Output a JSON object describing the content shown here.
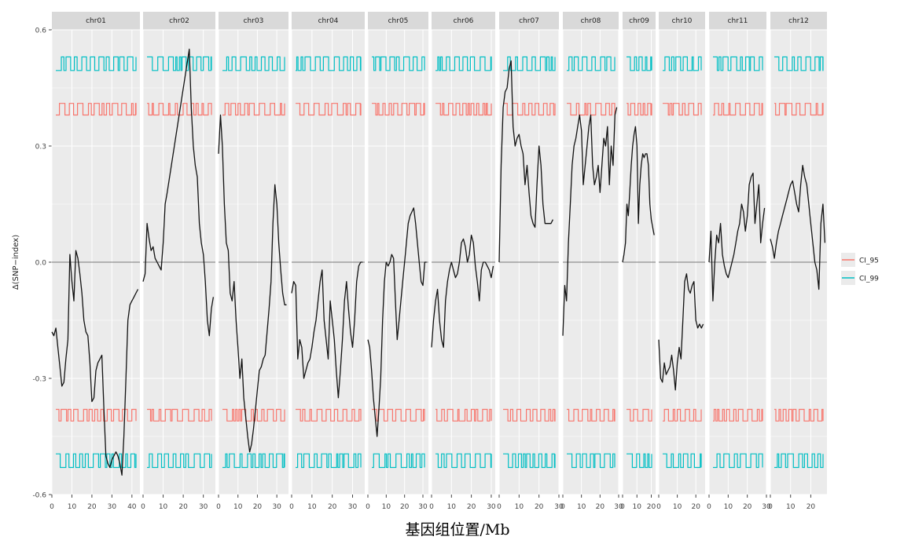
{
  "chart_data": {
    "type": "line",
    "xlabel": "基因组位置/Mb",
    "ylabel": "Δ(SNP−index)",
    "ylim": [
      -0.6,
      0.6
    ],
    "yticks": [
      {
        "value": 0.6,
        "label": "0.6"
      },
      {
        "value": 0.3,
        "label": "0.3"
      },
      {
        "value": 0.0,
        "label": "0.0"
      },
      {
        "value": -0.3,
        "label": "-0.3"
      },
      {
        "value": -0.6,
        "label": "-0.6"
      }
    ],
    "zero_line": 0,
    "grid": true,
    "legend": {
      "position": "right",
      "entries": [
        {
          "name": "CI_95",
          "color": "#F8766D"
        },
        {
          "name": "CI_99",
          "color": "#00BFC4"
        }
      ]
    },
    "panels": [
      {
        "label": "chr01",
        "xlim": [
          0,
          44
        ],
        "xticks": [
          0,
          10,
          20,
          30,
          40
        ],
        "snp_delta": {
          "x": [
            0,
            1,
            2,
            3,
            4,
            5,
            6,
            7,
            8,
            9,
            10,
            11,
            12,
            13,
            14,
            15,
            16,
            17,
            18,
            19,
            20,
            21,
            22,
            23,
            24,
            25,
            26,
            27,
            28,
            29,
            30,
            31,
            32,
            33,
            34,
            35,
            36,
            37,
            38,
            39,
            40,
            41,
            42,
            43
          ],
          "y": [
            -0.18,
            -0.19,
            -0.17,
            -0.22,
            -0.27,
            -0.32,
            -0.31,
            -0.25,
            -0.2,
            0.02,
            -0.05,
            -0.1,
            0.03,
            0.01,
            -0.03,
            -0.08,
            -0.15,
            -0.18,
            -0.19,
            -0.26,
            -0.36,
            -0.35,
            -0.28,
            -0.26,
            -0.25,
            -0.24,
            -0.38,
            -0.5,
            -0.52,
            -0.53,
            -0.51,
            -0.5,
            -0.49,
            -0.5,
            -0.52,
            -0.55,
            -0.45,
            -0.3,
            -0.15,
            -0.11,
            -0.1,
            -0.09,
            -0.08,
            -0.07
          ]
        }
      },
      {
        "label": "chr02",
        "xlim": [
          0,
          36
        ],
        "xticks": [
          0,
          10,
          20,
          30
        ],
        "snp_delta": {
          "x": [
            0,
            1,
            2,
            3,
            4,
            5,
            6,
            7,
            8,
            9,
            10,
            11,
            12,
            23,
            24,
            25,
            26,
            27,
            28,
            29,
            30,
            31,
            32,
            33,
            34,
            35
          ],
          "y": [
            -0.05,
            -0.03,
            0.1,
            0.06,
            0.03,
            0.04,
            0.01,
            0.0,
            -0.01,
            -0.02,
            0.05,
            0.15,
            0.18,
            0.55,
            0.4,
            0.3,
            0.25,
            0.22,
            0.1,
            0.05,
            0.02,
            -0.05,
            -0.15,
            -0.19,
            -0.12,
            -0.09
          ]
        }
      },
      {
        "label": "chr03",
        "xlim": [
          0,
          36
        ],
        "xticks": [
          0,
          10,
          20,
          30
        ],
        "snp_delta": {
          "x": [
            0,
            1,
            2,
            3,
            4,
            5,
            6,
            7,
            8,
            9,
            10,
            11,
            12,
            13,
            14,
            15,
            16,
            17,
            18,
            19,
            20,
            21,
            22,
            23,
            24,
            25,
            26,
            27,
            28,
            29,
            30,
            31,
            32,
            33,
            34,
            35
          ],
          "y": [
            0.28,
            0.38,
            0.3,
            0.15,
            0.05,
            0.03,
            -0.08,
            -0.1,
            -0.05,
            -0.15,
            -0.22,
            -0.3,
            -0.25,
            -0.35,
            -0.4,
            -0.45,
            -0.49,
            -0.47,
            -0.43,
            -0.38,
            -0.33,
            -0.28,
            -0.27,
            -0.25,
            -0.24,
            -0.18,
            -0.12,
            -0.05,
            0.1,
            0.2,
            0.15,
            0.05,
            -0.02,
            -0.08,
            -0.11,
            -0.11
          ]
        }
      },
      {
        "label": "chr04",
        "xlim": [
          0,
          36
        ],
        "xticks": [
          0,
          10,
          20,
          30
        ],
        "snp_delta": {
          "x": [
            0,
            1,
            2,
            3,
            4,
            5,
            6,
            7,
            8,
            9,
            10,
            11,
            12,
            13,
            14,
            15,
            16,
            17,
            18,
            19,
            20,
            21,
            22,
            23,
            24,
            25,
            26,
            27,
            28,
            29,
            30,
            31,
            32,
            33,
            34,
            35
          ],
          "y": [
            -0.08,
            -0.05,
            -0.06,
            -0.25,
            -0.2,
            -0.22,
            -0.3,
            -0.28,
            -0.26,
            -0.25,
            -0.22,
            -0.18,
            -0.15,
            -0.1,
            -0.05,
            -0.02,
            -0.15,
            -0.2,
            -0.25,
            -0.1,
            -0.15,
            -0.2,
            -0.28,
            -0.35,
            -0.28,
            -0.2,
            -0.1,
            -0.05,
            -0.12,
            -0.18,
            -0.22,
            -0.15,
            -0.05,
            -0.01,
            0.0,
            0.0
          ]
        }
      },
      {
        "label": "chr05",
        "xlim": [
          0,
          33
        ],
        "xticks": [
          0,
          10,
          20,
          30
        ],
        "snp_delta": {
          "x": [
            0,
            1,
            2,
            3,
            4,
            5,
            6,
            7,
            8,
            9,
            10,
            11,
            12,
            13,
            14,
            15,
            16,
            17,
            18,
            19,
            20,
            21,
            22,
            23,
            24,
            25,
            26,
            27,
            28,
            29,
            30,
            31,
            32
          ],
          "y": [
            -0.2,
            -0.22,
            -0.28,
            -0.35,
            -0.4,
            -0.45,
            -0.38,
            -0.3,
            -0.15,
            -0.05,
            0.0,
            -0.01,
            0.0,
            0.02,
            0.01,
            -0.1,
            -0.2,
            -0.15,
            -0.1,
            -0.05,
            0.0,
            0.05,
            0.1,
            0.12,
            0.13,
            0.14,
            0.1,
            0.05,
            0.0,
            -0.05,
            -0.06,
            0.0,
            0.0
          ]
        }
      },
      {
        "label": "chr06",
        "xlim": [
          0,
          32
        ],
        "xticks": [
          0,
          10,
          20,
          30
        ],
        "snp_delta": {
          "x": [
            0,
            1,
            2,
            3,
            4,
            5,
            6,
            7,
            8,
            9,
            10,
            11,
            12,
            13,
            14,
            15,
            16,
            17,
            18,
            19,
            20,
            21,
            22,
            23,
            24,
            25,
            26,
            27,
            28,
            29,
            30,
            31
          ],
          "y": [
            -0.22,
            -0.15,
            -0.1,
            -0.07,
            -0.15,
            -0.2,
            -0.22,
            -0.1,
            -0.05,
            -0.02,
            0.0,
            -0.02,
            -0.04,
            -0.03,
            0.0,
            0.05,
            0.06,
            0.04,
            0.0,
            0.02,
            0.07,
            0.05,
            -0.01,
            -0.05,
            -0.1,
            -0.02,
            0.0,
            0.0,
            -0.01,
            -0.02,
            -0.04,
            -0.01
          ]
        }
      },
      {
        "label": "chr07",
        "xlim": [
          0,
          30
        ],
        "xticks": [
          0,
          10,
          20,
          30
        ],
        "snp_delta": {
          "x": [
            0,
            1,
            2,
            3,
            4,
            5,
            6,
            7,
            8,
            9,
            10,
            11,
            12,
            13,
            14,
            15,
            16,
            17,
            18,
            19,
            20,
            21,
            22,
            23,
            24,
            25,
            26,
            27
          ],
          "y": [
            0.0,
            0.25,
            0.4,
            0.44,
            0.45,
            0.5,
            0.52,
            0.35,
            0.3,
            0.32,
            0.33,
            0.3,
            0.28,
            0.2,
            0.25,
            0.18,
            0.12,
            0.1,
            0.09,
            0.2,
            0.3,
            0.25,
            0.15,
            0.1,
            0.1,
            0.1,
            0.1,
            0.11
          ]
        }
      },
      {
        "label": "chr08",
        "xlim": [
          0,
          30
        ],
        "xticks": [
          0,
          10,
          20,
          30
        ],
        "snp_delta": {
          "x": [
            0,
            1,
            2,
            3,
            4,
            5,
            6,
            7,
            8,
            9,
            10,
            11,
            12,
            13,
            14,
            15,
            16,
            17,
            18,
            19,
            20,
            21,
            22,
            23,
            24,
            25,
            26,
            27,
            28,
            29
          ],
          "y": [
            -0.19,
            -0.06,
            -0.1,
            0.05,
            0.15,
            0.25,
            0.3,
            0.32,
            0.35,
            0.38,
            0.34,
            0.2,
            0.25,
            0.3,
            0.35,
            0.38,
            0.25,
            0.2,
            0.22,
            0.25,
            0.18,
            0.25,
            0.32,
            0.3,
            0.35,
            0.2,
            0.3,
            0.25,
            0.38,
            0.4
          ]
        }
      },
      {
        "label": "chr09",
        "xlim": [
          0,
          23
        ],
        "xticks": [
          0,
          10,
          20
        ],
        "snp_delta": {
          "x": [
            0,
            1,
            2,
            3,
            4,
            5,
            6,
            7,
            8,
            9,
            10,
            11,
            12,
            13,
            14,
            15,
            16,
            17,
            18,
            19,
            20,
            21,
            22
          ],
          "y": [
            0.0,
            0.02,
            0.05,
            0.15,
            0.12,
            0.18,
            0.25,
            0.3,
            0.33,
            0.35,
            0.3,
            0.1,
            0.2,
            0.25,
            0.28,
            0.27,
            0.28,
            0.28,
            0.25,
            0.15,
            0.11,
            0.09,
            0.07
          ]
        }
      },
      {
        "label": "chr10",
        "xlim": [
          0,
          25
        ],
        "xticks": [
          0,
          10,
          20
        ],
        "snp_delta": {
          "x": [
            0,
            1,
            2,
            3,
            4,
            5,
            6,
            7,
            8,
            9,
            10,
            11,
            12,
            13,
            14,
            15,
            16,
            17,
            18,
            19,
            20,
            21,
            22,
            23,
            24
          ],
          "y": [
            -0.2,
            -0.3,
            -0.31,
            -0.26,
            -0.29,
            -0.28,
            -0.27,
            -0.24,
            -0.28,
            -0.33,
            -0.26,
            -0.22,
            -0.25,
            -0.15,
            -0.05,
            -0.03,
            -0.07,
            -0.08,
            -0.06,
            -0.05,
            -0.15,
            -0.17,
            -0.16,
            -0.17,
            -0.16
          ]
        }
      },
      {
        "label": "chr11",
        "xlim": [
          0,
          30
        ],
        "xticks": [
          0,
          10,
          20,
          30
        ],
        "snp_delta": {
          "x": [
            0,
            1,
            2,
            3,
            4,
            5,
            6,
            7,
            8,
            9,
            10,
            11,
            12,
            13,
            14,
            15,
            16,
            17,
            18,
            19,
            20,
            21,
            22,
            23,
            24,
            25,
            26,
            27,
            28,
            29
          ],
          "y": [
            0.0,
            0.08,
            -0.1,
            0.0,
            0.07,
            0.05,
            0.1,
            0.02,
            -0.01,
            -0.03,
            -0.04,
            -0.02,
            0.0,
            0.02,
            0.05,
            0.08,
            0.1,
            0.15,
            0.13,
            0.08,
            0.12,
            0.2,
            0.22,
            0.23,
            0.1,
            0.15,
            0.2,
            0.05,
            0.1,
            0.14
          ]
        }
      },
      {
        "label": "chr12",
        "xlim": [
          0,
          28
        ],
        "xticks": [
          0,
          10,
          20
        ],
        "snp_delta": {
          "x": [
            0,
            1,
            2,
            3,
            4,
            5,
            6,
            7,
            8,
            9,
            10,
            11,
            12,
            13,
            14,
            15,
            16,
            17,
            18,
            19,
            20,
            21,
            22,
            23,
            24,
            25,
            26,
            27
          ],
          "y": [
            0.06,
            0.04,
            0.01,
            0.05,
            0.08,
            0.1,
            0.12,
            0.14,
            0.16,
            0.18,
            0.2,
            0.21,
            0.18,
            0.15,
            0.13,
            0.2,
            0.25,
            0.22,
            0.2,
            0.15,
            0.1,
            0.05,
            0.0,
            -0.02,
            -0.07,
            0.1,
            0.15,
            0.05
          ]
        }
      }
    ]
  }
}
